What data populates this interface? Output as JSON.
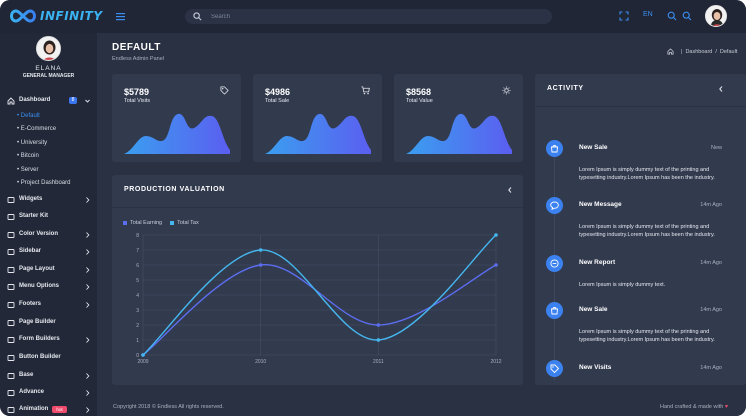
{
  "brand": {
    "name": "INFINITY",
    "accent": "#3bb3f2"
  },
  "topbar": {
    "search_placeholder": "Search",
    "lang": "EN",
    "icons": [
      "menu-icon",
      "search-icon",
      "fullscreen-icon",
      "globe-icon",
      "zoom-icon",
      "avatar"
    ]
  },
  "user": {
    "name": "ELANA",
    "role": "GENERAL MANAGER"
  },
  "sidebar": {
    "dashboard": {
      "label": "Dashboard",
      "badge": "8"
    },
    "submenu": [
      "• Default",
      "• E-Commerce",
      "• University",
      "• Bitcoin",
      "• Server",
      "• Project Dashboard"
    ],
    "items": [
      {
        "label": "Widgets",
        "icon": "monitor-icon",
        "chevron": true
      },
      {
        "label": "Starter Kit",
        "icon": "anchor-icon",
        "chevron": false
      },
      {
        "label": "Color Version",
        "icon": "palette-icon",
        "chevron": true
      },
      {
        "label": "Sidebar",
        "icon": "sidebar-icon",
        "chevron": true
      },
      {
        "label": "Page Layout",
        "icon": "layout-icon",
        "chevron": true
      },
      {
        "label": "Menu Options",
        "icon": "layers-icon",
        "chevron": true
      },
      {
        "label": "Footers",
        "icon": "footer-icon",
        "chevron": true
      },
      {
        "label": "Page Builder",
        "icon": "builder-icon",
        "chevron": false
      },
      {
        "label": "Form Builders",
        "icon": "box-icon",
        "chevron": true
      },
      {
        "label": "Button Builder",
        "icon": "bookmark-icon",
        "chevron": false
      },
      {
        "label": "Base",
        "icon": "cloud-icon",
        "chevron": true
      },
      {
        "label": "Advance",
        "icon": "advance-icon",
        "chevron": true
      },
      {
        "label": "Animation",
        "icon": "animation-icon",
        "chevron": true,
        "badge": "hot"
      }
    ]
  },
  "page": {
    "title": "DEFAULT",
    "subtitle": "Endless Admin Panel",
    "breadcrumb": [
      "Dashboard",
      "Default"
    ]
  },
  "stats": [
    {
      "value": "$5789",
      "label": "Total Visits",
      "icon": "tag-icon"
    },
    {
      "value": "$4986",
      "label": "Total Sale",
      "icon": "cart-icon"
    },
    {
      "value": "$8568",
      "label": "Total Value",
      "icon": "sun-icon"
    }
  ],
  "production": {
    "title": "PRODUCTION VALUATION",
    "chart_data": {
      "type": "line",
      "x": [
        "2009",
        "2010",
        "2011",
        "2012"
      ],
      "yticks": [
        "0",
        "1",
        "2",
        "3",
        "4",
        "5",
        "6",
        "7",
        "8"
      ],
      "ylim": [
        0,
        8
      ],
      "grid": true,
      "legend": "top-left",
      "series": [
        {
          "name": "Total Earning",
          "values": [
            0,
            6,
            2,
            6
          ],
          "color": "#5b6ef0"
        },
        {
          "name": "Total Tax",
          "values": [
            0,
            7,
            1,
            8
          ],
          "color": "#45b7ef"
        }
      ]
    }
  },
  "activity": {
    "title": "ACTIVITY",
    "items": [
      {
        "title": "New Sale",
        "time": "New",
        "text": "Lorem Ipsum is simply dummy text of the printing and typesetting industry.Lorem Ipsum has been the industry.",
        "icon": "shopping-bag-icon"
      },
      {
        "title": "New Message",
        "time": "14m Ago",
        "text": "Lorem Ipsum is simply dummy text of the printing and typesetting industry.Lorem Ipsum has been the industry.",
        "icon": "message-icon"
      },
      {
        "title": "New Report",
        "time": "14m Ago",
        "text": "Lorem Ipsum is simply dummy text.",
        "icon": "minus-circle-icon"
      },
      {
        "title": "New Sale",
        "time": "14m Ago",
        "text": "Lorem Ipsum is simply dummy text of the printing and typesetting industry.Lorem Ipsum has been the industry.",
        "icon": "shopping-bag-icon"
      },
      {
        "title": "New Visits",
        "time": "14m Ago",
        "text": "Lorem Ipsum is simply dummy text of the printing and typesetting industry.Lorem Ipsum has been the industry.",
        "icon": "tag-icon"
      }
    ]
  },
  "footer": {
    "copyright": "Copyright 2018 © Endless All rights reserved.",
    "made_with": "Hand crafted & made with",
    "heart": "♥"
  }
}
